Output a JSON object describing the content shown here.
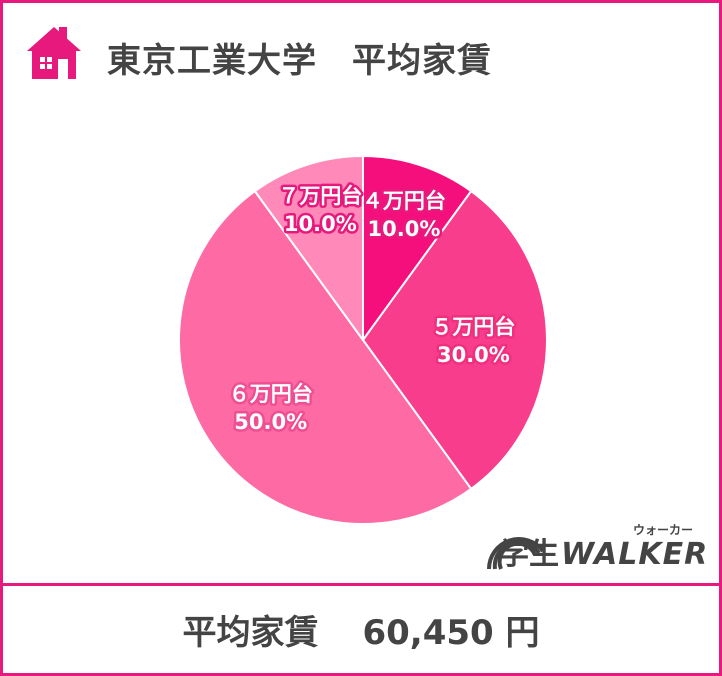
{
  "header": {
    "title": "東京工業大学　平均家賃",
    "icon": "house-icon"
  },
  "chart_data": {
    "type": "pie",
    "title": "東京工業大学　平均家賃",
    "slices": [
      {
        "label": "４万円台",
        "value": 10.0,
        "percent_label": "10.0%",
        "color": "#f50f7c",
        "label_color": "#e8197c"
      },
      {
        "label": "５万円台",
        "value": 30.0,
        "percent_label": "30.0%",
        "color": "#f83d8c",
        "label_color": "#f0307f"
      },
      {
        "label": "６万円台",
        "value": 50.0,
        "percent_label": "50.0%",
        "color": "#fd6aa4",
        "label_color": "#f04e92"
      },
      {
        "label": "７万円台",
        "value": 10.0,
        "percent_label": "10.0%",
        "color": "#ff8ab9",
        "label_color": "#e8197c"
      }
    ],
    "start": "12 o'clock",
    "direction": "clockwise"
  },
  "logo": {
    "jp": "学生",
    "en": "WALKER",
    "kana": "ウォーカー"
  },
  "footer": {
    "label": "平均家賃",
    "value": "60,450 円"
  },
  "colors": {
    "border": "#e8197c",
    "accent": "#e8197c",
    "text": "#444444"
  }
}
